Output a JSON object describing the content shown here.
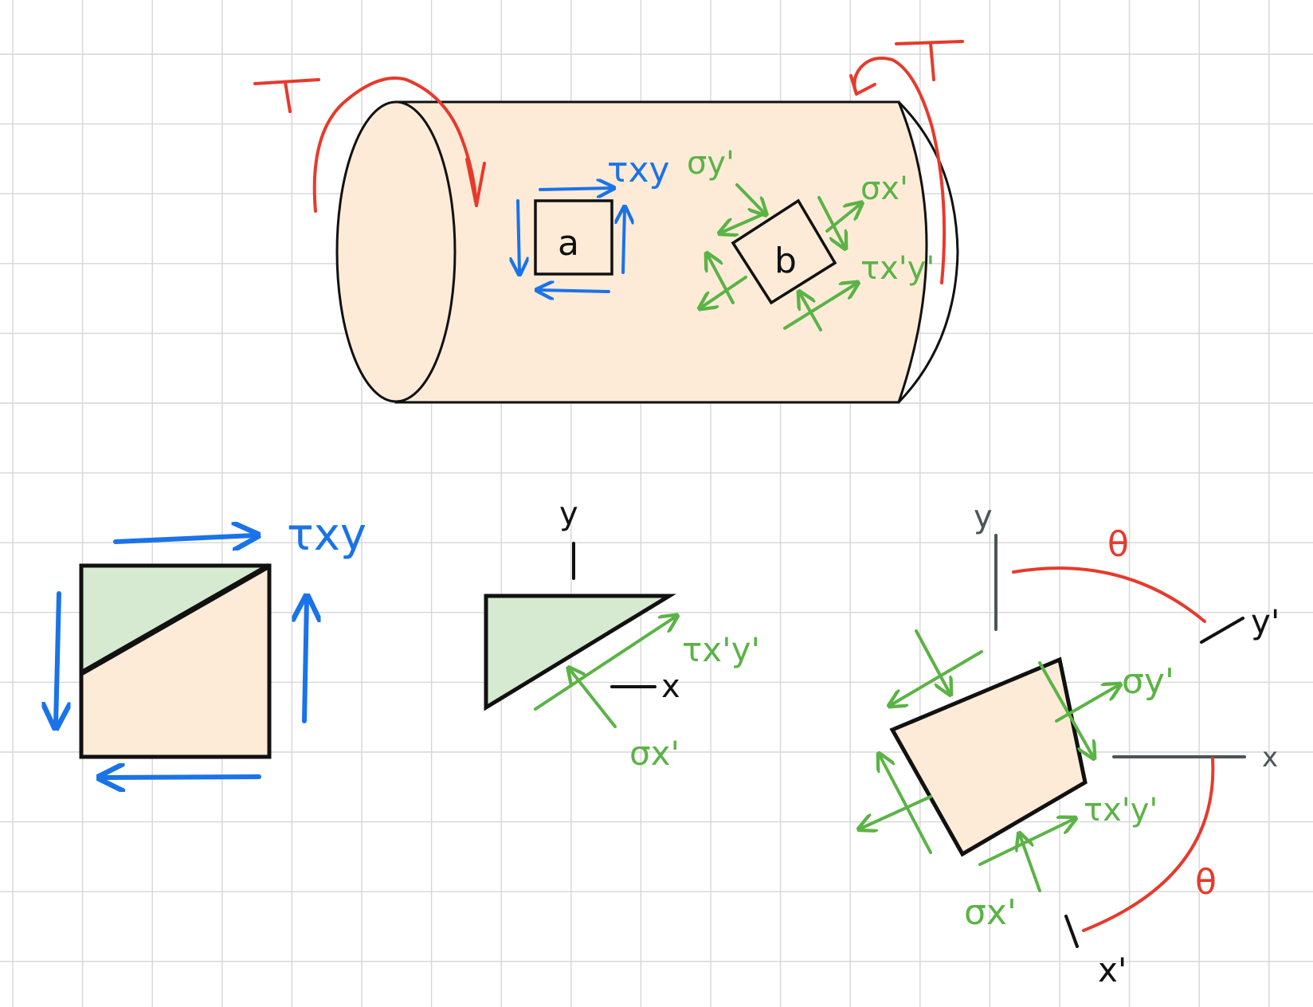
{
  "labels": {
    "torque_left": "T",
    "torque_right": "T",
    "element_a": "a",
    "element_b": "b",
    "tau_xy_top": "τxy",
    "sigma_y_prime_top": "σy'",
    "sigma_x_prime_top": "σx'",
    "tau_xpyp_top": "τx'y'",
    "tau_xy_left": "τxy",
    "axis_y_mid": "y",
    "axis_x_mid": "x",
    "tau_xpyp_mid": "τx'y'",
    "sigma_x_prime_mid": "σx'",
    "axis_y_right": "y",
    "axis_x_right": "x",
    "axis_yp_right": "y'",
    "axis_xp_right": "x'",
    "theta_top": "θ",
    "theta_bottom": "θ",
    "sigma_y_prime_right": "σy'",
    "tau_xpyp_right": "τx'y'",
    "sigma_x_prime_right": "σx'"
  },
  "colors": {
    "torque": "#e63a2b",
    "shear_blue": "#1a73e8",
    "rotated_green": "#5bb346",
    "cylinder_fill": "#fdebd8",
    "wedge_fill": "#d5ead1",
    "grid": "#d6d6d6"
  }
}
